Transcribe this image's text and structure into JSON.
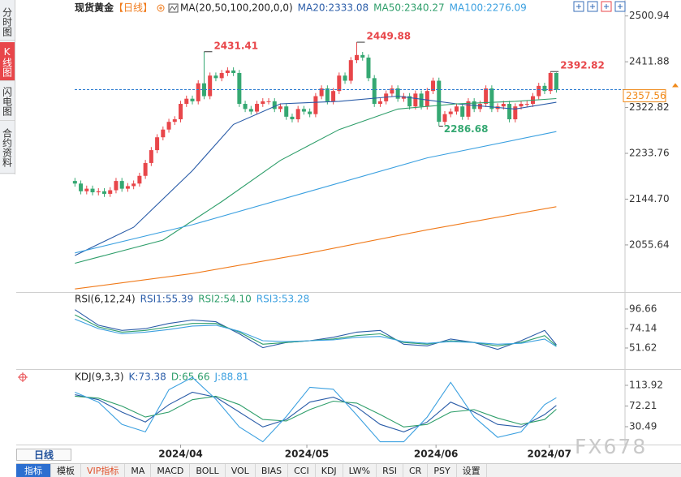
{
  "ui": {
    "tabs": [
      "分时图",
      "K线图",
      "闪电图",
      "合约资料"
    ],
    "period_button": "日线",
    "toolbar": [
      "指标",
      "模板",
      "VIP指标",
      "MA",
      "MACD",
      "BOLL",
      "VOL",
      "BIAS",
      "CCI",
      "KDJ",
      "LW%",
      "RSI",
      "CR",
      "PSY",
      "设置"
    ],
    "watermark": "FX678"
  },
  "chart_data": [
    {
      "type": "candlestick",
      "title": "现货黄金",
      "period_label": "【日线】",
      "indicator_label": "MA(20,50,100,200,0,0)",
      "up_color": "#e8464a",
      "down_color": "#35a872",
      "xlim": [
        -10,
        93
      ],
      "ylim": [
        1964,
        2532
      ],
      "yticks": [
        2500.94,
        2411.88,
        2322.82,
        2233.76,
        {
          "value": 2144.7,
          "label": "2144.70"
        },
        2055.64
      ],
      "candles": {
        "open": [
          2180,
          2175,
          2160,
          2165,
          2158,
          2160,
          2155,
          2162,
          2180,
          2165,
          2170,
          2175,
          2190,
          2215,
          2240,
          2265,
          2280,
          2295,
          2300,
          2330,
          2340,
          2335,
          2370,
          2345,
          2385,
          2380,
          2390,
          2395,
          2390,
          2330,
          2320,
          2315,
          2330,
          2335,
          2335,
          2320,
          2325,
          2305,
          2300,
          2320,
          2315,
          2310,
          2345,
          2360,
          2335,
          2355,
          2385,
          2375,
          2415,
          2425,
          2420,
          2380,
          2330,
          2335,
          2350,
          2360,
          2340,
          2345,
          2325,
          2350,
          2325,
          2355,
          2375,
          2295,
          2310,
          2315,
          2325,
          2305,
          2335,
          2320,
          2330,
          2360,
          2320,
          2325,
          2330,
          2300,
          2325,
          2330,
          2330,
          2345,
          2365,
          2355,
          2390
        ],
        "close": [
          2175,
          2160,
          2165,
          2158,
          2160,
          2155,
          2162,
          2180,
          2165,
          2170,
          2175,
          2190,
          2215,
          2240,
          2265,
          2280,
          2295,
          2300,
          2330,
          2340,
          2335,
          2370,
          2345,
          2385,
          2380,
          2390,
          2395,
          2390,
          2330,
          2320,
          2315,
          2330,
          2335,
          2335,
          2320,
          2325,
          2305,
          2300,
          2320,
          2315,
          2310,
          2345,
          2360,
          2335,
          2355,
          2385,
          2375,
          2415,
          2425,
          2420,
          2380,
          2330,
          2335,
          2350,
          2360,
          2340,
          2345,
          2325,
          2350,
          2325,
          2355,
          2375,
          2295,
          2310,
          2315,
          2325,
          2305,
          2335,
          2320,
          2330,
          2360,
          2320,
          2325,
          2330,
          2300,
          2325,
          2330,
          2330,
          2345,
          2365,
          2355,
          2390,
          2357.56
        ],
        "high": [
          2186,
          2181,
          2171,
          2171,
          2166,
          2166,
          2168,
          2186,
          2186,
          2176,
          2181,
          2196,
          2221,
          2246,
          2271,
          2286,
          2301,
          2306,
          2336,
          2346,
          2346,
          2376,
          2431.41,
          2391,
          2391,
          2396,
          2401,
          2401,
          2396,
          2336,
          2326,
          2336,
          2341,
          2341,
          2341,
          2331,
          2331,
          2311,
          2326,
          2326,
          2321,
          2351,
          2366,
          2366,
          2361,
          2391,
          2391,
          2421,
          2449.88,
          2431,
          2426,
          2386,
          2341,
          2356,
          2366,
          2366,
          2351,
          2351,
          2356,
          2356,
          2361,
          2381,
          2381,
          2316,
          2321,
          2331,
          2331,
          2341,
          2341,
          2336,
          2366,
          2366,
          2331,
          2336,
          2336,
          2331,
          2336,
          2336,
          2351,
          2371,
          2371,
          2392.82,
          2391
        ],
        "low": [
          2169,
          2154,
          2154,
          2152,
          2152,
          2149,
          2149,
          2156,
          2159,
          2159,
          2164,
          2169,
          2184,
          2209,
          2234,
          2259,
          2274,
          2289,
          2294,
          2324,
          2329,
          2329,
          2339,
          2339,
          2374,
          2374,
          2384,
          2384,
          2324,
          2314,
          2309,
          2309,
          2324,
          2329,
          2314,
          2314,
          2299,
          2294,
          2294,
          2309,
          2304,
          2304,
          2339,
          2329,
          2329,
          2349,
          2369,
          2369,
          2409,
          2414,
          2374,
          2324,
          2324,
          2329,
          2344,
          2334,
          2334,
          2319,
          2319,
          2319,
          2319,
          2349,
          2286.68,
          2289,
          2304,
          2309,
          2299,
          2299,
          2314,
          2314,
          2324,
          2314,
          2314,
          2319,
          2294,
          2294,
          2319,
          2324,
          2324,
          2339,
          2349,
          2349,
          2352
        ]
      },
      "marked_highs": [
        2431.41,
        2449.88,
        2392.82
      ],
      "marked_lows": [
        2286.68
      ],
      "last_price": 2357.56,
      "last_price_color": "#f08a1a",
      "series": [
        {
          "name": "MA20:2333.08",
          "color": "#2a5ca8",
          "x": [
            0,
            10,
            20,
            27,
            35,
            45,
            55,
            65,
            75,
            82
          ],
          "values": [
            2035,
            2090,
            2200,
            2290,
            2330,
            2335,
            2345,
            2330,
            2320,
            2333.08
          ]
        },
        {
          "name": "MA50:2340.27",
          "color": "#2e9e6a",
          "x": [
            0,
            15,
            25,
            35,
            45,
            55,
            65,
            75,
            82
          ],
          "values": [
            2020,
            2065,
            2140,
            2220,
            2280,
            2320,
            2330,
            2335,
            2340.27
          ]
        },
        {
          "name": "MA100:2276.09",
          "color": "#3ba0e0",
          "x": [
            0,
            20,
            40,
            60,
            82
          ],
          "values": [
            2040,
            2095,
            2160,
            2225,
            2276.09
          ]
        },
        {
          "color": "#f07a1a",
          "x": [
            0,
            20,
            40,
            60,
            82
          ],
          "values": [
            1970,
            2000,
            2040,
            2085,
            2130
          ]
        }
      ]
    },
    {
      "type": "line",
      "indicator_label": "RSI(6,12,24)",
      "xlim": [
        -10,
        93
      ],
      "ylim": [
        30,
        114.5
      ],
      "yticks": [
        96.66,
        74.14,
        51.62
      ],
      "series": [
        {
          "name": "RSI1:55.39",
          "color": "#2a5ca8",
          "x": [
            0,
            4,
            8,
            12,
            16,
            20,
            24,
            28,
            32,
            36,
            40,
            44,
            48,
            52,
            56,
            60,
            64,
            68,
            72,
            76,
            80,
            82
          ],
          "values": [
            96,
            78,
            72,
            74,
            80,
            84,
            82,
            68,
            52,
            58,
            60,
            64,
            70,
            72,
            56,
            54,
            62,
            58,
            50,
            60,
            72,
            55.39
          ]
        },
        {
          "name": "RSI2:54.10",
          "color": "#2e9e6a",
          "x": [
            0,
            4,
            8,
            12,
            16,
            20,
            24,
            28,
            32,
            36,
            40,
            44,
            48,
            52,
            56,
            60,
            64,
            68,
            72,
            76,
            80,
            82
          ],
          "values": [
            90,
            76,
            70,
            72,
            76,
            80,
            80,
            70,
            56,
            58,
            60,
            62,
            66,
            68,
            58,
            56,
            60,
            58,
            54,
            58,
            66,
            54.1
          ]
        },
        {
          "name": "RSI3:53.28",
          "color": "#3ba0e0",
          "x": [
            0,
            4,
            8,
            12,
            16,
            20,
            24,
            28,
            32,
            36,
            40,
            44,
            48,
            52,
            56,
            60,
            64,
            68,
            72,
            76,
            80,
            82
          ],
          "values": [
            85,
            74,
            68,
            70,
            73,
            77,
            78,
            71,
            60,
            59,
            60,
            61,
            64,
            65,
            59,
            57,
            59,
            58,
            56,
            57,
            62,
            53.28
          ]
        }
      ]
    },
    {
      "type": "line",
      "indicator_label": "KDJ(9,3,3)",
      "xlim": [
        -10,
        93
      ],
      "ylim": [
        -5.5,
        141.7
      ],
      "yticks": [
        113.92,
        72.21,
        30.49
      ],
      "xticks": [
        {
          "value": 18,
          "label": "2024/04"
        },
        {
          "value": 39.5,
          "label": "2024/05"
        },
        {
          "value": 61.5,
          "label": "2024/06"
        },
        {
          "value": 80.8,
          "label": "2024/07"
        }
      ],
      "series": [
        {
          "name": "K:73.38",
          "color": "#2a5ca8",
          "x": [
            0,
            4,
            8,
            12,
            16,
            20,
            24,
            28,
            32,
            36,
            40,
            44,
            48,
            52,
            56,
            60,
            64,
            68,
            72,
            76,
            80,
            82
          ],
          "values": [
            95,
            85,
            60,
            40,
            75,
            100,
            90,
            60,
            30,
            45,
            80,
            90,
            70,
            35,
            20,
            40,
            80,
            60,
            35,
            30,
            55,
            73.38
          ]
        },
        {
          "name": "D:65.66",
          "color": "#2e9e6a",
          "x": [
            0,
            4,
            8,
            12,
            16,
            20,
            24,
            28,
            32,
            36,
            40,
            44,
            48,
            52,
            56,
            60,
            64,
            68,
            72,
            76,
            80,
            82
          ],
          "values": [
            92,
            88,
            72,
            50,
            60,
            85,
            92,
            75,
            45,
            42,
            65,
            82,
            78,
            55,
            30,
            35,
            60,
            65,
            48,
            35,
            45,
            65.66
          ]
        },
        {
          "name": "J:88.81",
          "color": "#3ba0e0",
          "x": [
            0,
            4,
            8,
            12,
            16,
            20,
            24,
            28,
            32,
            36,
            40,
            44,
            48,
            52,
            56,
            60,
            64,
            68,
            72,
            76,
            80,
            82
          ],
          "values": [
            100,
            80,
            35,
            20,
            105,
            130,
            86,
            30,
            0,
            51,
            110,
            106,
            54,
            0,
            0,
            50,
            120,
            50,
            9,
            20,
            75,
            88.81
          ]
        }
      ]
    }
  ]
}
